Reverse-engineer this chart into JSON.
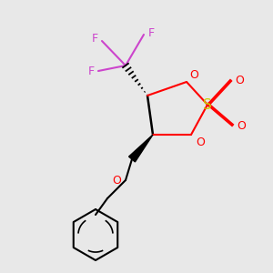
{
  "colors": {
    "C": "#000000",
    "O": "#ff0000",
    "S": "#cccc00",
    "F": "#cc44cc",
    "bg": "#e8e8e8"
  },
  "figsize": [
    3.0,
    3.0
  ],
  "dpi": 100
}
